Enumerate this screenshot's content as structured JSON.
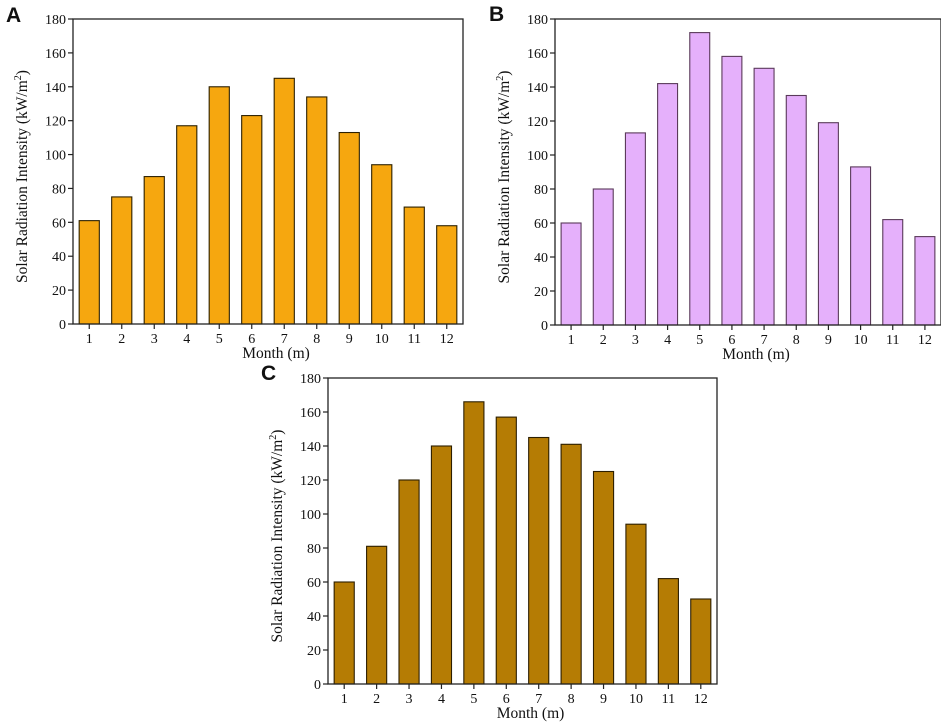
{
  "chart_data": [
    {
      "panel": "A",
      "type": "bar",
      "categories": [
        "1",
        "2",
        "3",
        "4",
        "5",
        "6",
        "7",
        "8",
        "9",
        "10",
        "11",
        "12"
      ],
      "values": [
        61,
        75,
        87,
        117,
        140,
        123,
        145,
        134,
        113,
        94,
        69,
        58
      ],
      "xlabel": "Month (m)",
      "ylabel": "Solar Radiation Intensity (kW/m",
      "ylabel_sup": "2",
      "ylabel_close": ")",
      "ylim": [
        0,
        180
      ],
      "yticks": [
        "0",
        "20",
        "40",
        "60",
        "80",
        "100",
        "120",
        "140",
        "160",
        "180"
      ],
      "fill": "#f6a70f",
      "edge": "#2c2000"
    },
    {
      "panel": "B",
      "type": "bar",
      "categories": [
        "1",
        "2",
        "3",
        "4",
        "5",
        "6",
        "7",
        "8",
        "9",
        "10",
        "11",
        "12"
      ],
      "values": [
        60,
        80,
        113,
        142,
        172,
        158,
        151,
        135,
        119,
        93,
        62,
        52
      ],
      "xlabel": "Month (m)",
      "ylabel": "Solar Radiation Intensity (kW/m",
      "ylabel_sup": "2",
      "ylabel_close": ")",
      "ylim": [
        0,
        180
      ],
      "yticks": [
        "0",
        "20",
        "40",
        "60",
        "80",
        "100",
        "120",
        "140",
        "160",
        "180"
      ],
      "fill": "#e5b0fb",
      "edge": "#5a3a5a"
    },
    {
      "panel": "C",
      "type": "bar",
      "categories": [
        "1",
        "2",
        "3",
        "4",
        "5",
        "6",
        "7",
        "8",
        "9",
        "10",
        "11",
        "12"
      ],
      "values": [
        60,
        81,
        120,
        140,
        166,
        157,
        145,
        141,
        125,
        94,
        62,
        50
      ],
      "xlabel": "Month (m)",
      "ylabel": "Solar Radiation Intensity (kW/m",
      "ylabel_sup": "2",
      "ylabel_close": ")",
      "ylim": [
        0,
        180
      ],
      "yticks": [
        "0",
        "20",
        "40",
        "60",
        "80",
        "100",
        "120",
        "140",
        "160",
        "180"
      ],
      "fill": "#b57c04",
      "edge": "#2c1e00"
    }
  ]
}
